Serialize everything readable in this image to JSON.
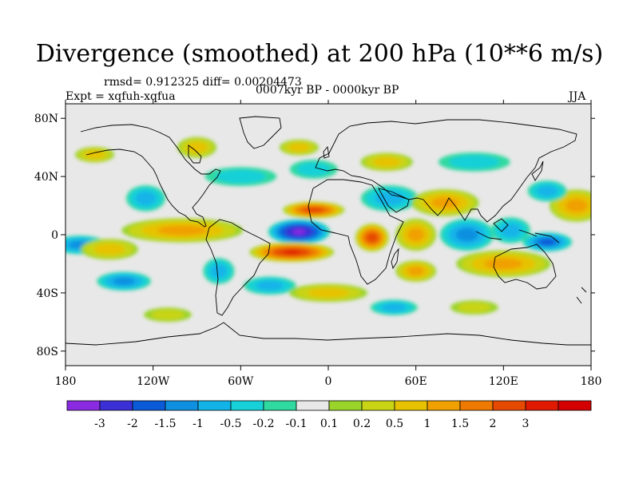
{
  "title": "Divergence (smoothed) at 200 hPa (10**6 m/s)",
  "stats": "rmsd= 0.912325 diff= 0.00204473",
  "experiment": "Expt = xqfuh-xqfua",
  "period": "0007kyr BP - 0000kyr BP",
  "season": "JJA",
  "map": {
    "lon_ticks": [
      {
        "lon": -180,
        "label": "180"
      },
      {
        "lon": -120,
        "label": "120W"
      },
      {
        "lon": -60,
        "label": "60W"
      },
      {
        "lon": 0,
        "label": "0"
      },
      {
        "lon": 60,
        "label": "60E"
      },
      {
        "lon": 120,
        "label": "120E"
      },
      {
        "lon": 180,
        "label": "180"
      }
    ],
    "lat_ticks": [
      {
        "lat": 80,
        "label": "80N"
      },
      {
        "lat": 40,
        "label": "40N"
      },
      {
        "lat": 0,
        "label": "0"
      },
      {
        "lat": -40,
        "label": "40S"
      },
      {
        "lat": -80,
        "label": "80S"
      }
    ],
    "lon_range": [
      -180,
      180
    ],
    "lat_range": [
      -90,
      90
    ]
  },
  "colorbar": {
    "colors": [
      "#8a2be2",
      "#3b2fd6",
      "#0b5bd9",
      "#0f8fe0",
      "#12b4e8",
      "#18d0d8",
      "#2fd9a0",
      "#e8e8e8",
      "#9ad42a",
      "#c9d415",
      "#e6c200",
      "#f0a000",
      "#ee7a00",
      "#e64a00",
      "#e01a00",
      "#d40000"
    ],
    "labels": [
      "-3",
      "-2",
      "-1.5",
      "-1",
      "-0.5",
      "-0.2",
      "-0.1",
      "0.1",
      "0.2",
      "0.5",
      "1",
      "1.5",
      "2",
      "3"
    ]
  },
  "field_anomalies": [
    {
      "lon": -20,
      "lat": 2,
      "value": -3.5,
      "rlon": 22,
      "rlat": 9
    },
    {
      "lon": -25,
      "lat": -12,
      "value": 3.5,
      "rlon": 30,
      "rlat": 7
    },
    {
      "lon": -10,
      "lat": 17,
      "value": 3.0,
      "rlon": 22,
      "rlat": 6
    },
    {
      "lon": 30,
      "lat": -2,
      "value": 3.0,
      "rlon": 12,
      "rlat": 10
    },
    {
      "lon": 42,
      "lat": 25,
      "value": -1.0,
      "rlon": 22,
      "rlat": 10
    },
    {
      "lon": 80,
      "lat": 22,
      "value": 1.5,
      "rlon": 25,
      "rlat": 10
    },
    {
      "lon": 60,
      "lat": 0,
      "value": 1.5,
      "rlon": 15,
      "rlat": 12
    },
    {
      "lon": 95,
      "lat": 0,
      "value": -1.5,
      "rlon": 20,
      "rlat": 12
    },
    {
      "lon": 125,
      "lat": 3,
      "value": -1.0,
      "rlon": 15,
      "rlat": 10
    },
    {
      "lon": 150,
      "lat": -5,
      "value": -2.0,
      "rlon": 18,
      "rlat": 7
    },
    {
      "lon": 170,
      "lat": 20,
      "value": 1.5,
      "rlon": 20,
      "rlat": 12
    },
    {
      "lon": 120,
      "lat": -20,
      "value": 1.5,
      "rlon": 35,
      "rlat": 10
    },
    {
      "lon": 150,
      "lat": 30,
      "value": -1.0,
      "rlon": 15,
      "rlat": 8
    },
    {
      "lon": -100,
      "lat": 3,
      "value": 1.5,
      "rlon": 45,
      "rlat": 9
    },
    {
      "lon": -125,
      "lat": 25,
      "value": -1.0,
      "rlon": 15,
      "rlat": 10
    },
    {
      "lon": -170,
      "lat": -7,
      "value": -1.5,
      "rlon": 20,
      "rlat": 7
    },
    {
      "lon": -150,
      "lat": -10,
      "value": 1.0,
      "rlon": 22,
      "rlat": 8
    },
    {
      "lon": -140,
      "lat": -32,
      "value": -1.5,
      "rlon": 20,
      "rlat": 7
    },
    {
      "lon": -75,
      "lat": -25,
      "value": -1.0,
      "rlon": 12,
      "rlat": 10
    },
    {
      "lon": -40,
      "lat": -35,
      "value": -1.0,
      "rlon": 20,
      "rlat": 7
    },
    {
      "lon": 0,
      "lat": -40,
      "value": 1.0,
      "rlon": 30,
      "rlat": 7
    },
    {
      "lon": 45,
      "lat": -50,
      "value": -1.0,
      "rlon": 18,
      "rlat": 6
    },
    {
      "lon": -60,
      "lat": 40,
      "value": -0.5,
      "rlon": 30,
      "rlat": 8
    },
    {
      "lon": -10,
      "lat": 45,
      "value": -0.5,
      "rlon": 20,
      "rlat": 8
    },
    {
      "lon": 40,
      "lat": 50,
      "value": 1.0,
      "rlon": 20,
      "rlat": 7
    },
    {
      "lon": -20,
      "lat": 60,
      "value": 1.0,
      "rlon": 15,
      "rlat": 6
    },
    {
      "lon": -90,
      "lat": 60,
      "value": 1.0,
      "rlon": 15,
      "rlat": 8
    },
    {
      "lon": 100,
      "lat": 50,
      "value": -0.5,
      "rlon": 30,
      "rlat": 8
    },
    {
      "lon": -160,
      "lat": 55,
      "value": 1.0,
      "rlon": 15,
      "rlat": 6
    },
    {
      "lon": 60,
      "lat": -25,
      "value": 1.5,
      "rlon": 15,
      "rlat": 8
    },
    {
      "lon": -110,
      "lat": -55,
      "value": 0.5,
      "rlon": 20,
      "rlat": 6
    },
    {
      "lon": 100,
      "lat": -50,
      "value": 0.5,
      "rlon": 20,
      "rlat": 6
    }
  ]
}
